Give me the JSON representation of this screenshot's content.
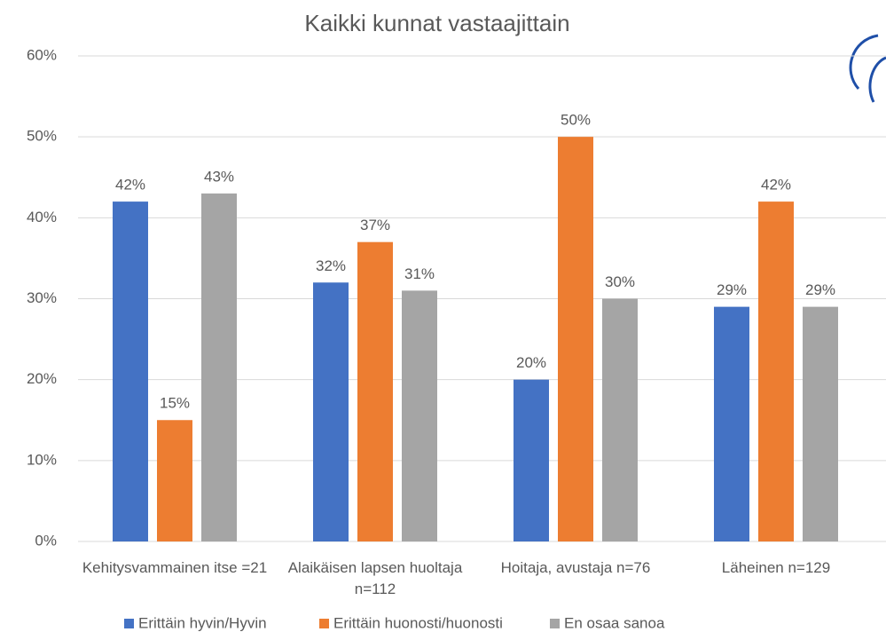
{
  "chart_data": {
    "type": "bar",
    "title": "Kaikki kunnat vastaajittain",
    "categories": [
      "Kehitysvammainen itse =21",
      "Alaikäisen lapsen huoltaja n=112",
      "Hoitaja, avustaja n=76",
      "Läheinen n=129"
    ],
    "series": [
      {
        "name": "Erittäin hyvin/Hyvin",
        "color": "#4472c4",
        "values": [
          42,
          32,
          20,
          29
        ],
        "value_labels": [
          "42%",
          "32%",
          "20%",
          "29%"
        ]
      },
      {
        "name": "Erittäin huonosti/huonosti",
        "color": "#ed7d31",
        "values": [
          15,
          37,
          50,
          42
        ],
        "value_labels": [
          "15%",
          "37%",
          "50%",
          "42%"
        ]
      },
      {
        "name": "En osaa sanoa",
        "color": "#a5a5a5",
        "values": [
          43,
          31,
          30,
          29
        ],
        "value_labels": [
          "43%",
          "31%",
          "30%",
          "29%"
        ]
      }
    ],
    "ylim": [
      0,
      60
    ],
    "yticks": [
      {
        "value": 0,
        "label": "0%"
      },
      {
        "value": 10,
        "label": "10%"
      },
      {
        "value": 20,
        "label": "20%"
      },
      {
        "value": 30,
        "label": "30%"
      },
      {
        "value": 40,
        "label": "40%"
      },
      {
        "value": 50,
        "label": "50%"
      },
      {
        "value": 60,
        "label": "60%"
      }
    ],
    "grid": true,
    "legend": "bottom"
  }
}
